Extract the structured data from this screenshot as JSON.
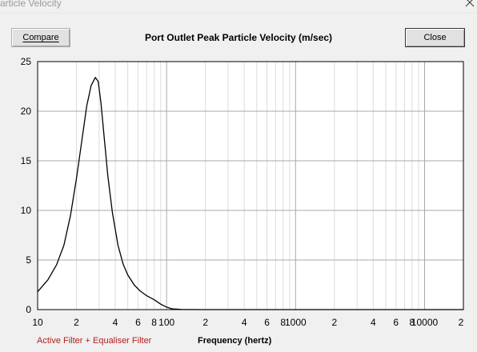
{
  "window": {
    "title": "article Velocity",
    "close_icon": "close-icon"
  },
  "toolbar": {
    "compare_label": "Compare",
    "close_label": "Close"
  },
  "chart_data": {
    "type": "line",
    "title": "Port Outlet Peak Particle Velocity (m/sec)",
    "xlabel": "Frequency (hertz)",
    "ylabel": "",
    "x_scale": "log",
    "xlim": [
      10,
      20000
    ],
    "ylim": [
      0,
      25
    ],
    "grid": true,
    "y_ticks": [
      0,
      5,
      10,
      15,
      20,
      25
    ],
    "x_ticks": [
      {
        "value": 10,
        "label": "10"
      },
      {
        "value": 20,
        "label": "2"
      },
      {
        "value": 40,
        "label": "4"
      },
      {
        "value": 60,
        "label": "6"
      },
      {
        "value": 80,
        "label": "8"
      },
      {
        "value": 100,
        "label": "100"
      },
      {
        "value": 200,
        "label": "2"
      },
      {
        "value": 400,
        "label": "4"
      },
      {
        "value": 600,
        "label": "6"
      },
      {
        "value": 800,
        "label": "8"
      },
      {
        "value": 1000,
        "label": "1000"
      },
      {
        "value": 2000,
        "label": "2"
      },
      {
        "value": 4000,
        "label": "4"
      },
      {
        "value": 6000,
        "label": "6"
      },
      {
        "value": 8000,
        "label": "8"
      },
      {
        "value": 10000,
        "label": "10000"
      },
      {
        "value": 20000,
        "label": "2"
      }
    ],
    "legend": "bottom-left",
    "series": [
      {
        "name": "Active Filter + Equaliser Filter",
        "color": "#000000",
        "legend_color": "#b02020",
        "x": [
          10,
          12,
          14,
          16,
          18,
          20,
          22,
          24,
          26,
          28,
          29.5,
          31,
          33,
          35,
          38,
          42,
          46,
          50,
          56,
          62,
          70,
          80,
          90,
          100,
          110,
          130,
          200,
          500,
          1000,
          2000,
          5000,
          10000,
          20000
        ],
        "y": [
          1.8,
          3.0,
          4.5,
          6.5,
          9.5,
          13.2,
          17.0,
          20.5,
          22.6,
          23.4,
          23.0,
          20.8,
          17.0,
          13.5,
          9.8,
          6.5,
          4.6,
          3.5,
          2.5,
          1.9,
          1.4,
          1.0,
          0.55,
          0.25,
          0.08,
          0.02,
          0,
          0,
          0,
          0,
          0,
          0,
          0
        ]
      }
    ]
  }
}
